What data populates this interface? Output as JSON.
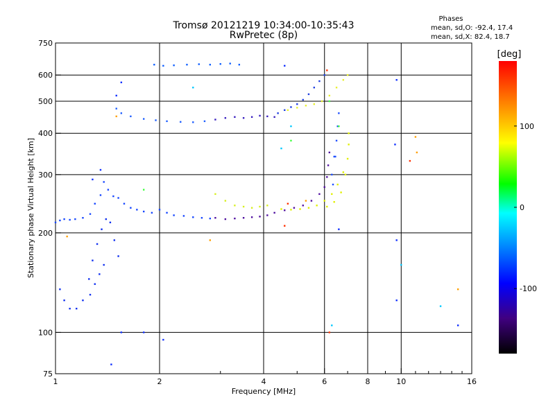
{
  "chart_data": {
    "type": "scatter",
    "title_line1": "Tromsø 20121219 10:34:00-10:35:43",
    "title_line2": "RwPretec (8p)",
    "xlabel": "Frequency [MHz]",
    "ylabel": "Stationary phase Virtual Height [km]",
    "x_scale": "log",
    "y_scale": "log",
    "xlim": [
      1,
      16
    ],
    "ylim": [
      75,
      750
    ],
    "x_ticks": [
      1,
      2,
      4,
      6,
      8,
      10,
      16
    ],
    "x_minor_ticks": [
      3,
      5,
      7,
      9,
      11,
      12,
      13,
      14,
      15
    ],
    "x_gridlines": [
      2,
      4,
      6,
      8,
      10
    ],
    "y_ticks": [
      75,
      100,
      200,
      300,
      400,
      500,
      600,
      750
    ],
    "y_gridlines": [
      100,
      200,
      300,
      400,
      500,
      600
    ],
    "grid": true,
    "phases_header": "Phases",
    "phases_o": "mean, sd,O: -92.4, 17.4",
    "phases_x": "mean, sd,X:  82.4, 18.7",
    "colorbar": {
      "label": "[deg]",
      "range": [
        -180,
        180
      ],
      "ticks": [
        100,
        0,
        -100
      ],
      "colors": [
        "#ff0000",
        "#ff8000",
        "#ffff00",
        "#00ff00",
        "#00ffff",
        "#0080ff",
        "#0000ff",
        "#400080",
        "#000000"
      ]
    },
    "series": [
      {
        "color": "#1848ff",
        "points": [
          [
            1.0,
            215
          ],
          [
            1.03,
            218
          ],
          [
            1.06,
            220
          ],
          [
            1.1,
            219
          ],
          [
            1.14,
            220
          ],
          [
            1.2,
            222
          ],
          [
            1.26,
            228
          ],
          [
            1.3,
            245
          ],
          [
            1.35,
            260
          ],
          [
            1.38,
            285
          ],
          [
            1.42,
            270
          ],
          [
            1.47,
            258
          ],
          [
            1.52,
            255
          ],
          [
            1.58,
            245
          ],
          [
            1.65,
            238
          ],
          [
            1.72,
            235
          ],
          [
            1.8,
            232
          ],
          [
            1.9,
            230
          ],
          [
            2.0,
            235
          ],
          [
            2.1,
            230
          ],
          [
            2.2,
            226
          ],
          [
            2.35,
            225
          ],
          [
            2.5,
            223
          ],
          [
            2.65,
            222
          ],
          [
            2.8,
            221
          ]
        ]
      },
      {
        "color": "#1030f0",
        "points": [
          [
            1.03,
            135
          ],
          [
            1.06,
            125
          ],
          [
            1.1,
            118
          ],
          [
            1.15,
            118
          ],
          [
            1.2,
            125
          ],
          [
            1.25,
            145
          ],
          [
            1.28,
            165
          ],
          [
            1.32,
            185
          ],
          [
            1.36,
            205
          ],
          [
            1.4,
            220
          ],
          [
            1.44,
            215
          ],
          [
            1.48,
            190
          ],
          [
            1.52,
            170
          ],
          [
            1.38,
            160
          ],
          [
            1.34,
            150
          ],
          [
            1.3,
            140
          ],
          [
            1.26,
            130
          ]
        ]
      },
      {
        "color": "#2060ff",
        "points": [
          [
            1.5,
            475
          ],
          [
            1.55,
            460
          ],
          [
            1.65,
            450
          ],
          [
            1.8,
            442
          ],
          [
            1.95,
            438
          ],
          [
            2.1,
            435
          ],
          [
            2.3,
            433
          ],
          [
            2.5,
            432
          ],
          [
            2.7,
            435
          ]
        ]
      },
      {
        "color": "#3a20c0",
        "points": [
          [
            2.9,
            440
          ],
          [
            3.1,
            445
          ],
          [
            3.3,
            448
          ],
          [
            3.5,
            445
          ],
          [
            3.7,
            448
          ],
          [
            3.9,
            452
          ],
          [
            4.1,
            450
          ],
          [
            4.3,
            448
          ]
        ]
      },
      {
        "color": "#1060ff",
        "points": [
          [
            1.93,
            645
          ],
          [
            2.05,
            640
          ],
          [
            2.2,
            642
          ],
          [
            2.4,
            645
          ],
          [
            2.6,
            647
          ],
          [
            2.8,
            645
          ],
          [
            3.0,
            648
          ],
          [
            3.2,
            650
          ],
          [
            3.4,
            645
          ]
        ]
      },
      {
        "color": "#5010a0",
        "points": [
          [
            2.9,
            222
          ],
          [
            3.1,
            220
          ],
          [
            3.3,
            221
          ],
          [
            3.5,
            222
          ],
          [
            3.7,
            223
          ],
          [
            3.9,
            224
          ],
          [
            4.1,
            226
          ],
          [
            4.3,
            230
          ],
          [
            4.6,
            234
          ],
          [
            4.9,
            238
          ],
          [
            5.2,
            242
          ],
          [
            5.5,
            250
          ],
          [
            5.8,
            262
          ],
          [
            6.0,
            275
          ],
          [
            6.1,
            295
          ],
          [
            6.15,
            320
          ],
          [
            6.2,
            350
          ]
        ]
      },
      {
        "color": "#2040e0",
        "points": [
          [
            4.4,
            460
          ],
          [
            4.6,
            470
          ],
          [
            4.8,
            480
          ],
          [
            5.0,
            490
          ],
          [
            5.2,
            505
          ],
          [
            5.4,
            525
          ],
          [
            5.6,
            550
          ],
          [
            5.8,
            575
          ],
          [
            6.0,
            600
          ]
        ]
      },
      {
        "color": "#d8f020",
        "points": [
          [
            2.9,
            262
          ],
          [
            3.1,
            250
          ],
          [
            3.3,
            242
          ],
          [
            3.5,
            240
          ],
          [
            3.7,
            238
          ],
          [
            3.9,
            240
          ],
          [
            4.1,
            242
          ]
        ]
      },
      {
        "color": "#e0f000",
        "points": [
          [
            4.5,
            236
          ],
          [
            4.8,
            235
          ],
          [
            5.1,
            236
          ],
          [
            5.4,
            238
          ],
          [
            5.7,
            242
          ],
          [
            6.0,
            250
          ],
          [
            6.3,
            262
          ],
          [
            6.55,
            280
          ],
          [
            6.8,
            305
          ],
          [
            7.0,
            335
          ],
          [
            7.05,
            370
          ],
          [
            7.05,
            400
          ],
          [
            6.9,
            300
          ],
          [
            6.7,
            265
          ],
          [
            6.4,
            248
          ],
          [
            6.1,
            240
          ]
        ]
      },
      {
        "color": "#e8f030",
        "points": [
          [
            4.7,
            470
          ],
          [
            5.0,
            478
          ],
          [
            5.3,
            485
          ],
          [
            5.6,
            490
          ],
          [
            5.9,
            500
          ],
          [
            6.2,
            520
          ],
          [
            6.5,
            550
          ],
          [
            6.8,
            580
          ],
          [
            7.0,
            600
          ]
        ]
      },
      {
        "color": "#2050ff",
        "points": [
          [
            6.3,
            300
          ],
          [
            6.4,
            340
          ],
          [
            6.5,
            380
          ],
          [
            6.55,
            420
          ],
          [
            6.6,
            460
          ],
          [
            6.45,
            340
          ],
          [
            6.35,
            280
          ]
        ]
      },
      {
        "color": "#ff3000",
        "points": [
          [
            6.1,
            620
          ],
          [
            10.6,
            330
          ],
          [
            4.6,
            210
          ],
          [
            4.7,
            245
          ],
          [
            6.2,
            100
          ]
        ]
      },
      {
        "color": "#ffa000",
        "points": [
          [
            1.5,
            450
          ],
          [
            1.08,
            195
          ],
          [
            2.8,
            190
          ],
          [
            5.3,
            250
          ],
          [
            11.0,
            390
          ],
          [
            11.1,
            350
          ],
          [
            14.6,
            135
          ]
        ]
      },
      {
        "color": "#00c8ff",
        "points": [
          [
            2.5,
            550
          ],
          [
            4.5,
            360
          ],
          [
            4.8,
            420
          ],
          [
            6.3,
            105
          ],
          [
            10.0,
            160
          ],
          [
            13.0,
            120
          ]
        ]
      },
      {
        "color": "#40ff40",
        "points": [
          [
            1.8,
            270
          ],
          [
            4.8,
            380
          ],
          [
            6.2,
            500
          ],
          [
            6.6,
            420
          ]
        ]
      },
      {
        "color": "#1030ff",
        "points": [
          [
            1.55,
            570
          ],
          [
            1.5,
            520
          ],
          [
            1.35,
            310
          ],
          [
            1.28,
            290
          ],
          [
            1.55,
            100
          ],
          [
            1.8,
            100
          ],
          [
            2.05,
            95
          ],
          [
            4.6,
            640
          ],
          [
            9.7,
            580
          ],
          [
            9.6,
            370
          ],
          [
            9.7,
            190
          ],
          [
            9.7,
            125
          ],
          [
            14.6,
            105
          ],
          [
            6.6,
            205
          ],
          [
            1.45,
            80
          ]
        ]
      }
    ]
  }
}
